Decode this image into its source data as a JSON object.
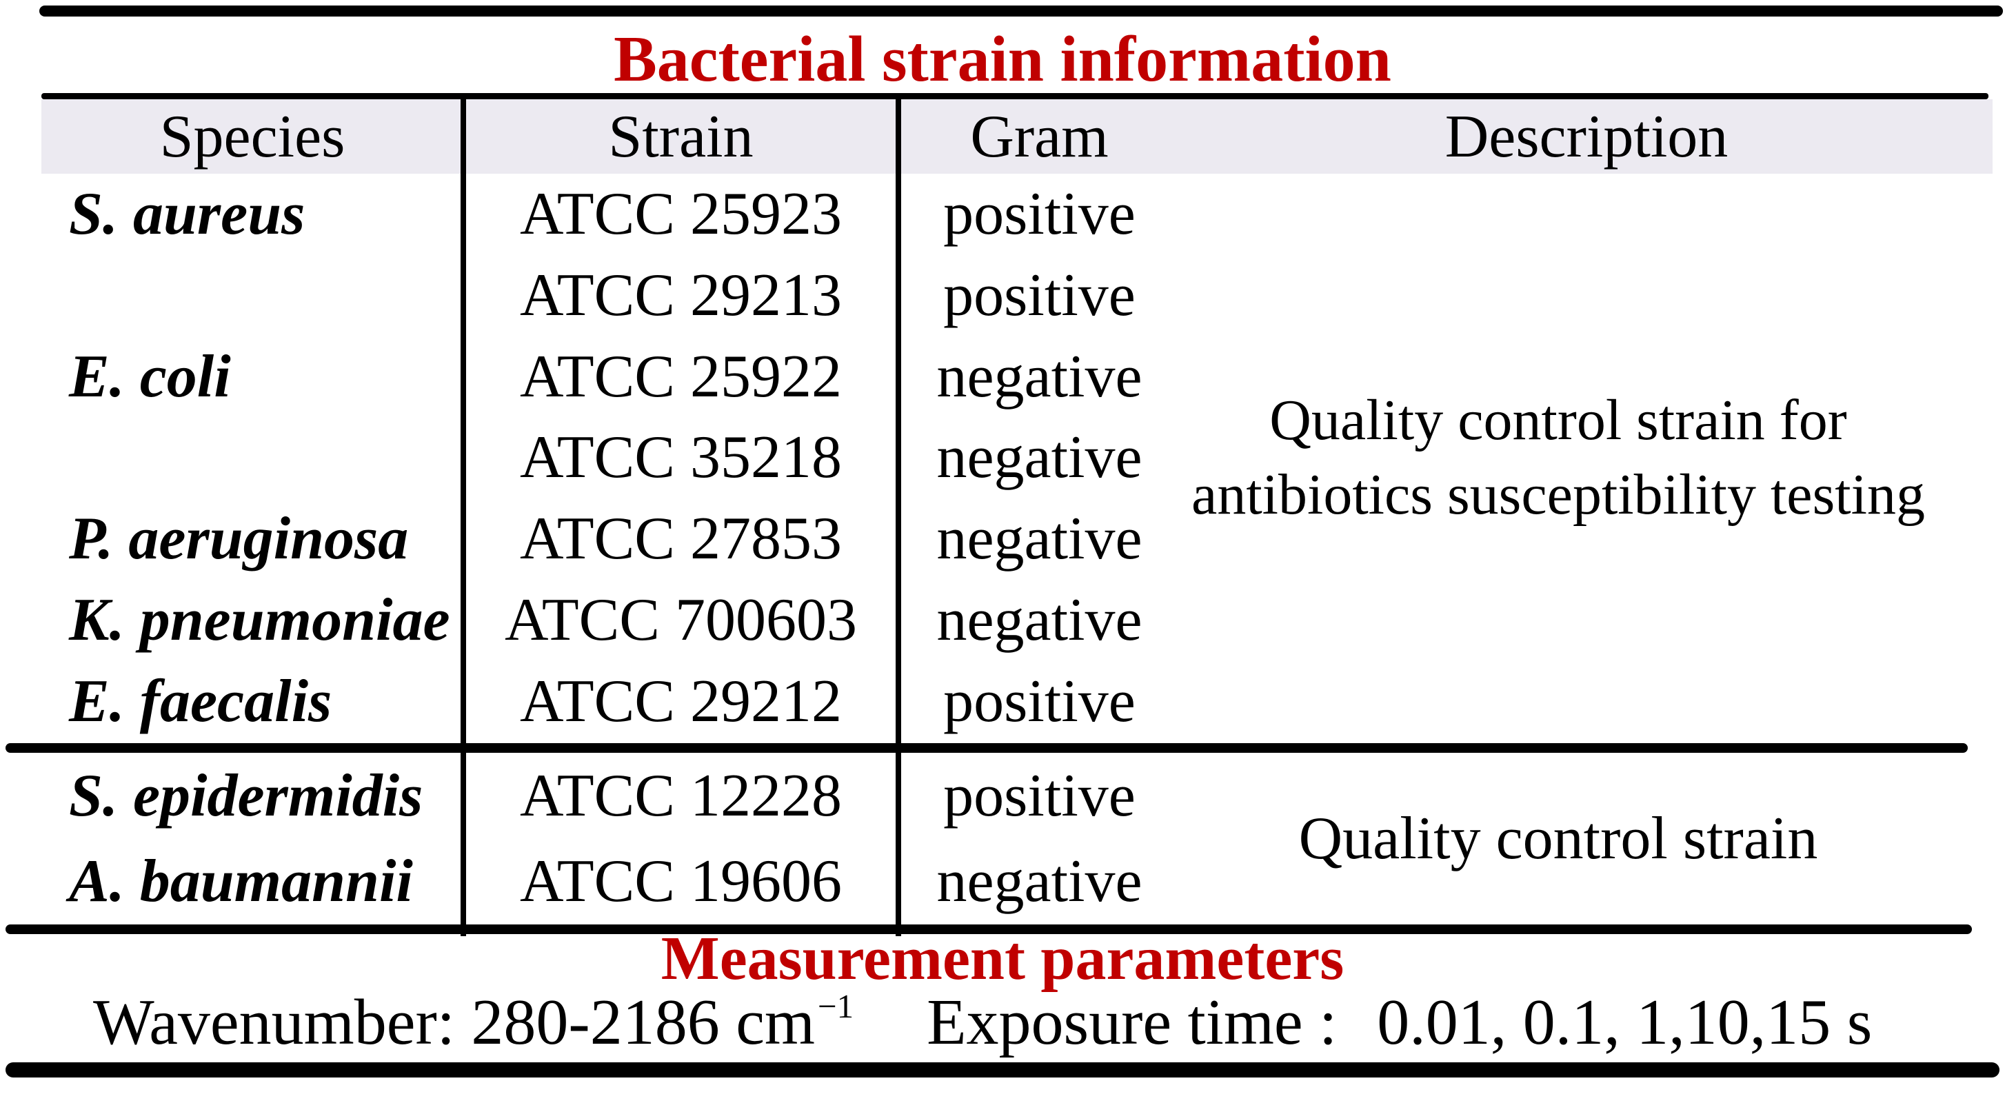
{
  "title": "Bacterial strain information",
  "colors": {
    "accent_red": "#c00000",
    "header_bg": "#eceaf1",
    "line_black": "#000000"
  },
  "table": {
    "headers": [
      "Species",
      "Strain",
      "Gram",
      "Description"
    ],
    "main_rows": [
      {
        "species": "S. aureus",
        "strain": "ATCC 25923",
        "gram": "positive"
      },
      {
        "species": "",
        "strain": "ATCC 29213",
        "gram": "positive"
      },
      {
        "species": "E. coli",
        "strain": "ATCC 25922",
        "gram": "negative"
      },
      {
        "species": "",
        "strain": "ATCC 35218",
        "gram": "negative"
      },
      {
        "species": "P. aeruginosa",
        "strain": "ATCC 27853",
        "gram": "negative"
      },
      {
        "species": "K. pneumoniae",
        "strain": "ATCC 700603",
        "gram": "negative"
      },
      {
        "species": "E. faecalis",
        "strain": "ATCC 29212",
        "gram": "positive"
      }
    ],
    "main_description_line1": "Quality control strain for",
    "main_description_line2": "antibiotics susceptibility testing",
    "qc_rows": [
      {
        "species": "S. epidermidis",
        "strain": "ATCC 12228",
        "gram": "positive"
      },
      {
        "species": "A. baumannii",
        "strain": "ATCC 19606",
        "gram": "negative"
      }
    ],
    "qc_description": "Quality control strain"
  },
  "measurement": {
    "section_title": "Measurement parameters",
    "wavenumber_text": "Wavenumber: 280-2186 cm",
    "wavenumber_superscript": "−1",
    "exposure_label": "Exposure time :",
    "exposure_value": "0.01, 0.1, 1,10,15 s"
  }
}
